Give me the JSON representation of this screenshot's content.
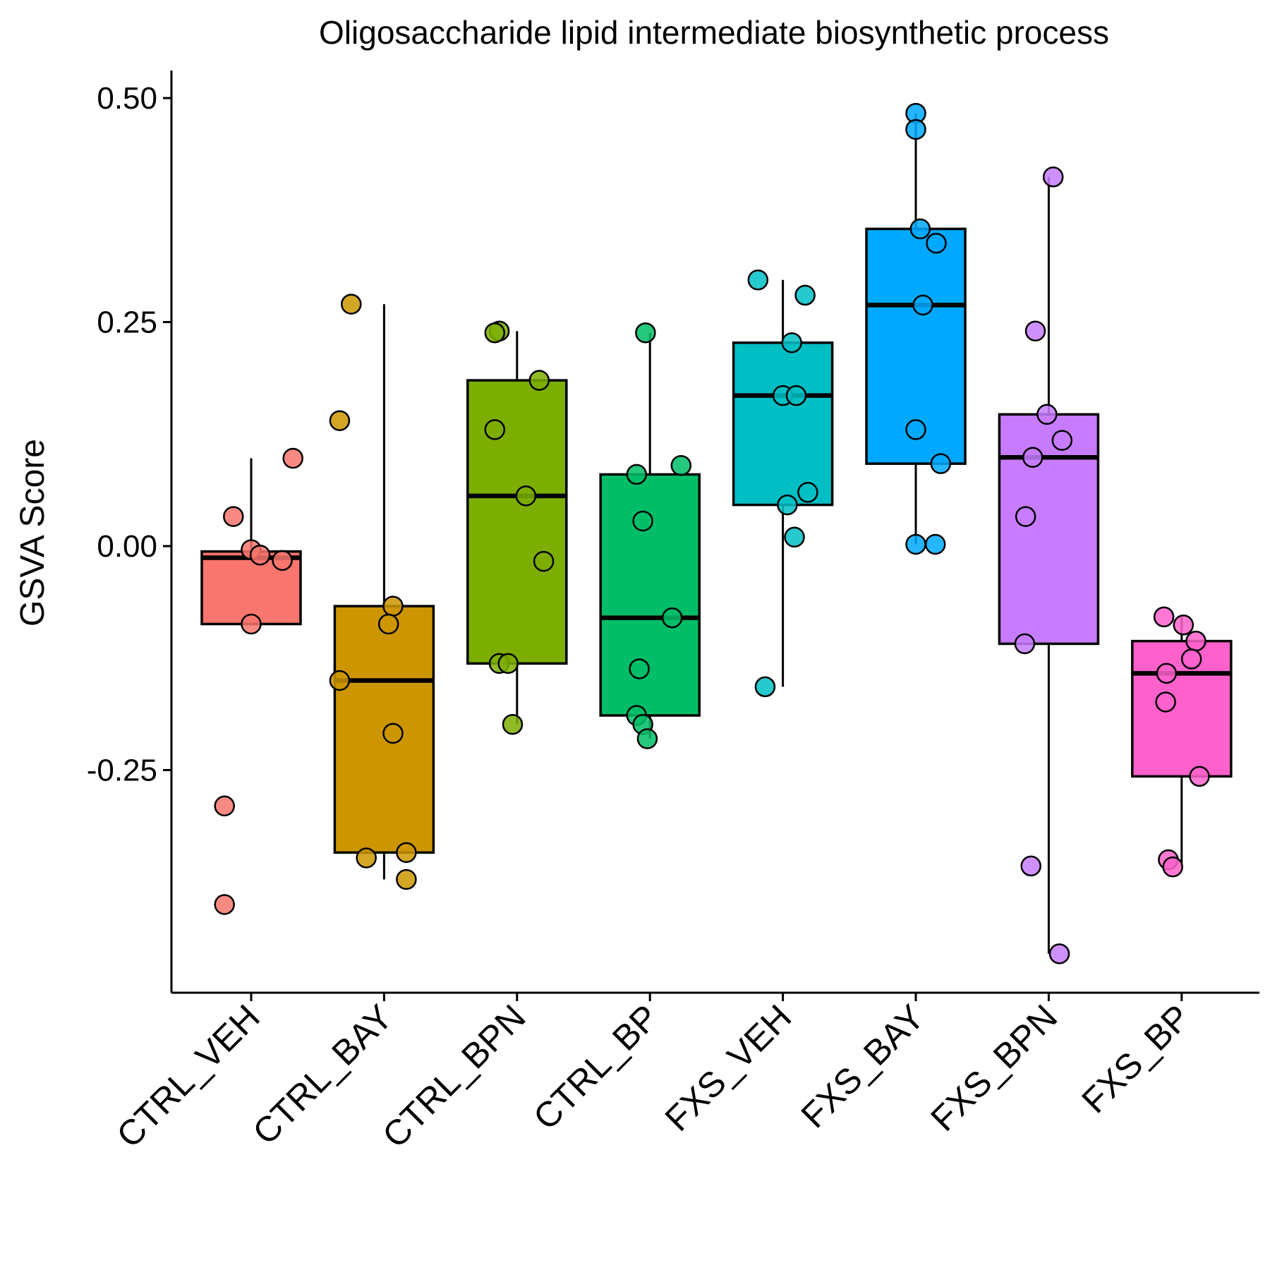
{
  "chart_data": {
    "type": "box",
    "title": "Oligosaccharide lipid intermediate biosynthetic process",
    "xlabel": "",
    "ylabel": "GSVA Score",
    "ylim": [
      -0.5,
      0.53
    ],
    "yticks": [
      0.5,
      0.25,
      0.0,
      -0.25
    ],
    "ytick_labels": [
      "0.50",
      "0.25",
      "0.00",
      "-0.25"
    ],
    "grid": false,
    "legend": "none",
    "categories": [
      "CTRL_VEH",
      "CTRL_BAY",
      "CTRL_BPN",
      "CTRL_BP",
      "FXS_VEH",
      "FXS_BAY",
      "FXS_BPN",
      "FXS_BP"
    ],
    "colors": [
      "#F8766D",
      "#CD9600",
      "#7CAE00",
      "#00BE67",
      "#00BFC4",
      "#00A9FF",
      "#C77CFF",
      "#FF61CC"
    ],
    "boxes": [
      {
        "q1": -0.087,
        "median": -0.013,
        "q3": -0.006,
        "whisker_low": -0.087,
        "whisker_high": 0.098
      },
      {
        "q1": -0.342,
        "median": -0.15,
        "q3": -0.067,
        "whisker_low": -0.372,
        "whisker_high": 0.27
      },
      {
        "q1": -0.131,
        "median": 0.056,
        "q3": 0.185,
        "whisker_low": -0.199,
        "whisker_high": 0.24
      },
      {
        "q1": -0.189,
        "median": -0.08,
        "q3": 0.08,
        "whisker_low": -0.215,
        "whisker_high": 0.238
      },
      {
        "q1": 0.046,
        "median": 0.168,
        "q3": 0.227,
        "whisker_low": -0.157,
        "whisker_high": 0.297
      },
      {
        "q1": 0.092,
        "median": 0.269,
        "q3": 0.354,
        "whisker_low": 0.002,
        "whisker_high": 0.483
      },
      {
        "q1": -0.109,
        "median": 0.099,
        "q3": 0.147,
        "whisker_low": -0.455,
        "whisker_high": 0.412
      },
      {
        "q1": -0.257,
        "median": -0.142,
        "q3": -0.106,
        "whisker_low": -0.358,
        "whisker_high": -0.079
      }
    ],
    "points": [
      [
        [
          0.3,
          0.033
        ],
        [
          0.97,
          0.098
        ],
        [
          0.5,
          -0.004
        ],
        [
          0.6,
          -0.01
        ],
        [
          0.85,
          -0.016
        ],
        [
          0.5,
          -0.087
        ],
        [
          0.2,
          -0.29
        ],
        [
          0.2,
          -0.4
        ]
      ],
      [
        [
          0.13,
          0.27
        ],
        [
          0.0,
          0.14
        ],
        [
          0.6,
          -0.067
        ],
        [
          0.55,
          -0.087
        ],
        [
          0.0,
          -0.15
        ],
        [
          0.6,
          -0.209
        ],
        [
          0.75,
          -0.342
        ],
        [
          0.3,
          -0.348
        ],
        [
          0.75,
          -0.372
        ]
      ],
      [
        [
          0.3,
          0.24
        ],
        [
          0.25,
          0.238
        ],
        [
          0.75,
          0.185
        ],
        [
          0.25,
          0.13
        ],
        [
          0.6,
          0.056
        ],
        [
          0.8,
          -0.017
        ],
        [
          0.3,
          -0.131
        ],
        [
          0.4,
          -0.131
        ],
        [
          0.45,
          -0.199
        ]
      ],
      [
        [
          0.45,
          0.238
        ],
        [
          0.85,
          0.09
        ],
        [
          0.35,
          0.08
        ],
        [
          0.42,
          0.028
        ],
        [
          0.38,
          -0.137
        ],
        [
          0.75,
          -0.08
        ],
        [
          0.35,
          -0.189
        ],
        [
          0.42,
          -0.199
        ],
        [
          0.47,
          -0.215
        ]
      ],
      [
        [
          0.22,
          0.297
        ],
        [
          0.75,
          0.28
        ],
        [
          0.6,
          0.227
        ],
        [
          0.5,
          0.168
        ],
        [
          0.65,
          0.168
        ],
        [
          0.78,
          0.06
        ],
        [
          0.55,
          0.046
        ],
        [
          0.63,
          0.01
        ],
        [
          0.3,
          -0.157
        ]
      ],
      [
        [
          0.5,
          0.483
        ],
        [
          0.5,
          0.465
        ],
        [
          0.55,
          0.354
        ],
        [
          0.73,
          0.338
        ],
        [
          0.58,
          0.269
        ],
        [
          0.5,
          0.13
        ],
        [
          0.78,
          0.092
        ],
        [
          0.5,
          0.002
        ],
        [
          0.72,
          0.002
        ]
      ],
      [
        [
          0.55,
          0.412
        ],
        [
          0.35,
          0.24
        ],
        [
          0.48,
          0.147
        ],
        [
          0.65,
          0.118
        ],
        [
          0.32,
          0.099
        ],
        [
          0.24,
          0.033
        ],
        [
          0.23,
          -0.109
        ],
        [
          0.3,
          -0.357
        ],
        [
          0.62,
          -0.455
        ]
      ],
      [
        [
          0.3,
          -0.079
        ],
        [
          0.52,
          -0.088
        ],
        [
          0.66,
          -0.106
        ],
        [
          0.61,
          -0.126
        ],
        [
          0.33,
          -0.142
        ],
        [
          0.32,
          -0.174
        ],
        [
          0.7,
          -0.257
        ],
        [
          0.35,
          -0.35
        ],
        [
          0.4,
          -0.358
        ]
      ]
    ]
  }
}
